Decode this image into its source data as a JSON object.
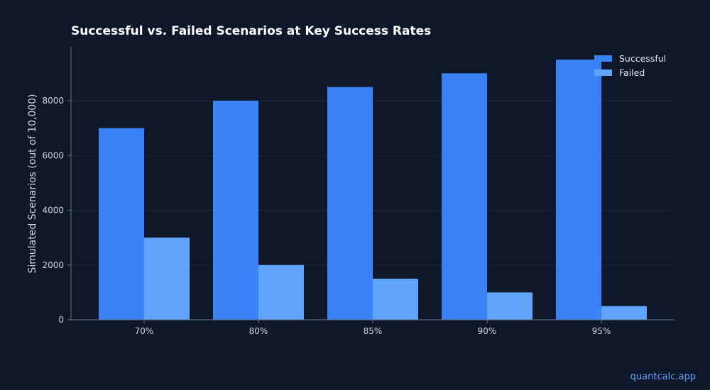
{
  "chart_data": {
    "type": "bar",
    "title": "Successful vs. Failed Scenarios at Key Success Rates",
    "xlabel": "",
    "ylabel": "Simulated Scenarios (out of 10,000)",
    "categories": [
      "70%",
      "80%",
      "85%",
      "90%",
      "95%"
    ],
    "series": [
      {
        "name": "Successful",
        "values": [
          7000,
          8000,
          8500,
          9000,
          9500
        ],
        "color": "#3b82f6"
      },
      {
        "name": "Failed",
        "values": [
          3000,
          2000,
          1500,
          1000,
          500
        ],
        "color": "#60a5fa"
      }
    ],
    "ylim": [
      0,
      10000
    ],
    "yticks": [
      0,
      2000,
      4000,
      6000,
      8000
    ],
    "grid": true,
    "legend_position": "top-right"
  },
  "colors": {
    "background": "#0f172a",
    "grid": "#1e293b",
    "axis": "#64748b",
    "watermark": "#60a5fa"
  },
  "watermark": "quantcalc.app"
}
